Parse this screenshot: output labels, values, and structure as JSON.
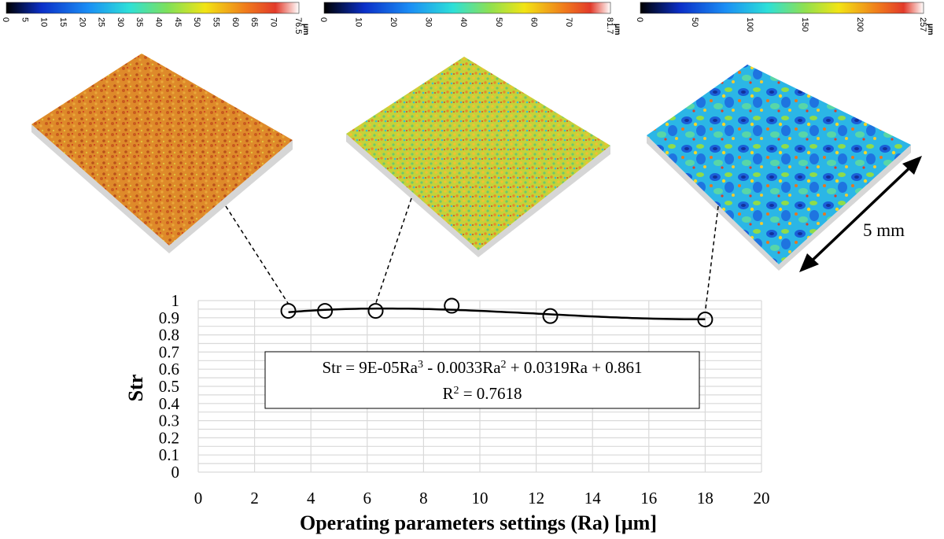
{
  "colorbars": [
    {
      "name": "colorbar-1",
      "unit": "µm",
      "min": 0,
      "max": 76.5,
      "ticks": [
        "0",
        "5",
        "10",
        "15",
        "20",
        "25",
        "30",
        "35",
        "40",
        "45",
        "50",
        "55",
        "60",
        "65",
        "70",
        "76.5"
      ],
      "tick_values": [
        0,
        5,
        10,
        15,
        20,
        25,
        30,
        35,
        40,
        45,
        50,
        55,
        60,
        65,
        70,
        76.5
      ]
    },
    {
      "name": "colorbar-2",
      "unit": "µm",
      "min": 0,
      "max": 81.7,
      "ticks": [
        "0",
        "10",
        "20",
        "30",
        "40",
        "50",
        "60",
        "70",
        "81.7"
      ],
      "tick_values": [
        0,
        10,
        20,
        30,
        40,
        50,
        60,
        70,
        81.7
      ]
    },
    {
      "name": "colorbar-3",
      "unit": "µm",
      "min": 0,
      "max": 257,
      "ticks": [
        "0",
        "50",
        "100",
        "150",
        "200",
        "257"
      ],
      "tick_values": [
        0,
        50,
        100,
        150,
        200,
        257
      ]
    }
  ],
  "surfaces": [
    {
      "name": "surface-1",
      "palette": "orange",
      "linked_point": 0
    },
    {
      "name": "surface-2",
      "palette": "yellow-green",
      "linked_point": 2
    },
    {
      "name": "surface-3",
      "palette": "blue-cyan",
      "linked_point": 5
    }
  ],
  "scale_label": "5 mm",
  "chart_data": {
    "type": "scatter",
    "xlabel": "Operating parameters settings (Ra) [µm]",
    "ylabel": "Str",
    "xlim": [
      0,
      20
    ],
    "ylim": [
      0,
      1
    ],
    "x_ticks": [
      "0",
      "2",
      "4",
      "6",
      "8",
      "10",
      "12",
      "14",
      "16",
      "18",
      "20"
    ],
    "y_ticks": [
      "0",
      "0.1",
      "0.2",
      "0.3",
      "0.4",
      "0.5",
      "0.6",
      "0.7",
      "0.8",
      "0.9",
      "1"
    ],
    "grid": true,
    "series": [
      {
        "x": [
          3.2,
          4.5,
          6.3,
          9.0,
          12.5,
          18.0
        ],
        "y": [
          0.94,
          0.94,
          0.94,
          0.97,
          0.91,
          0.89
        ]
      }
    ],
    "trendline": {
      "type": "polynomial",
      "coefficients": [
        9e-05,
        -0.0033,
        0.0319,
        0.861
      ],
      "x_range": [
        3.2,
        18.0
      ]
    },
    "annotation": {
      "equation_parts": [
        "Str = 9E-05Ra",
        "3",
        " - 0.0033Ra",
        "2",
        " + 0.0319Ra + 0.861"
      ],
      "r2_parts": [
        "R",
        "2",
        " = 0.7618"
      ]
    }
  },
  "colors": {
    "marker": "#000000",
    "grid": "#d9d9d9",
    "line": "#000000"
  }
}
